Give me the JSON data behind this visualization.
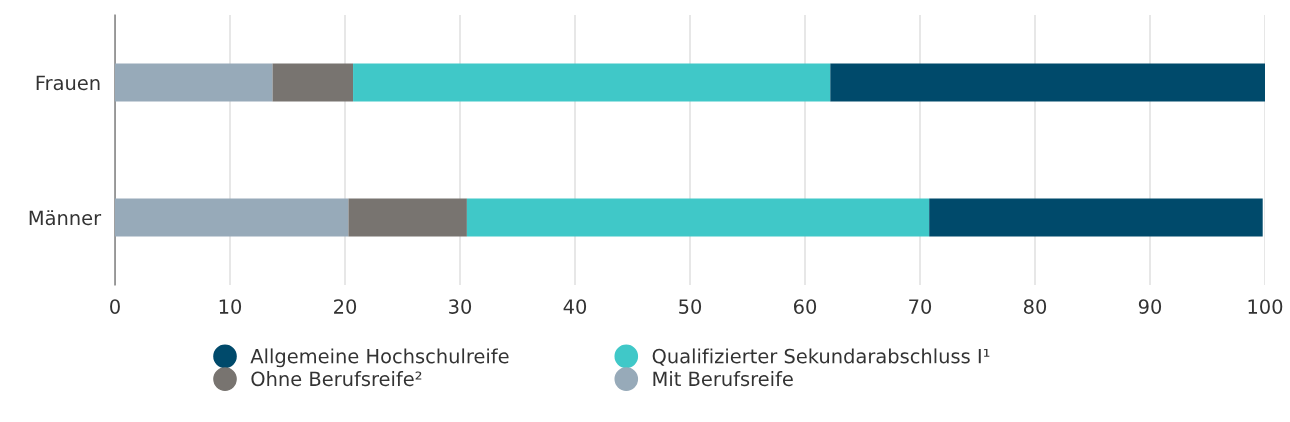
{
  "chart_data": {
    "type": "bar",
    "orientation": "horizontal",
    "stacked": true,
    "categories": [
      "Frauen",
      "Männer"
    ],
    "series": [
      {
        "name": "Mit Berufsreife",
        "color": "#97aab9",
        "values": [
          13.7,
          20.3
        ]
      },
      {
        "name": "Ohne Berufsreife²",
        "color": "#787470",
        "values": [
          7.0,
          10.3
        ]
      },
      {
        "name": "Qualifizierter Sekundarabschluss I¹",
        "color": "#40c8c8",
        "values": [
          41.5,
          40.2
        ]
      },
      {
        "name": "Allgemeine Hochschulreife",
        "color": "#004a6b",
        "values": [
          37.8,
          29.0
        ]
      }
    ],
    "xlim": [
      0,
      100
    ],
    "xticks": [
      0,
      10,
      20,
      30,
      40,
      50,
      60,
      70,
      80,
      90,
      100
    ],
    "grid": "x",
    "legend": "bottom",
    "marker": "circle"
  }
}
